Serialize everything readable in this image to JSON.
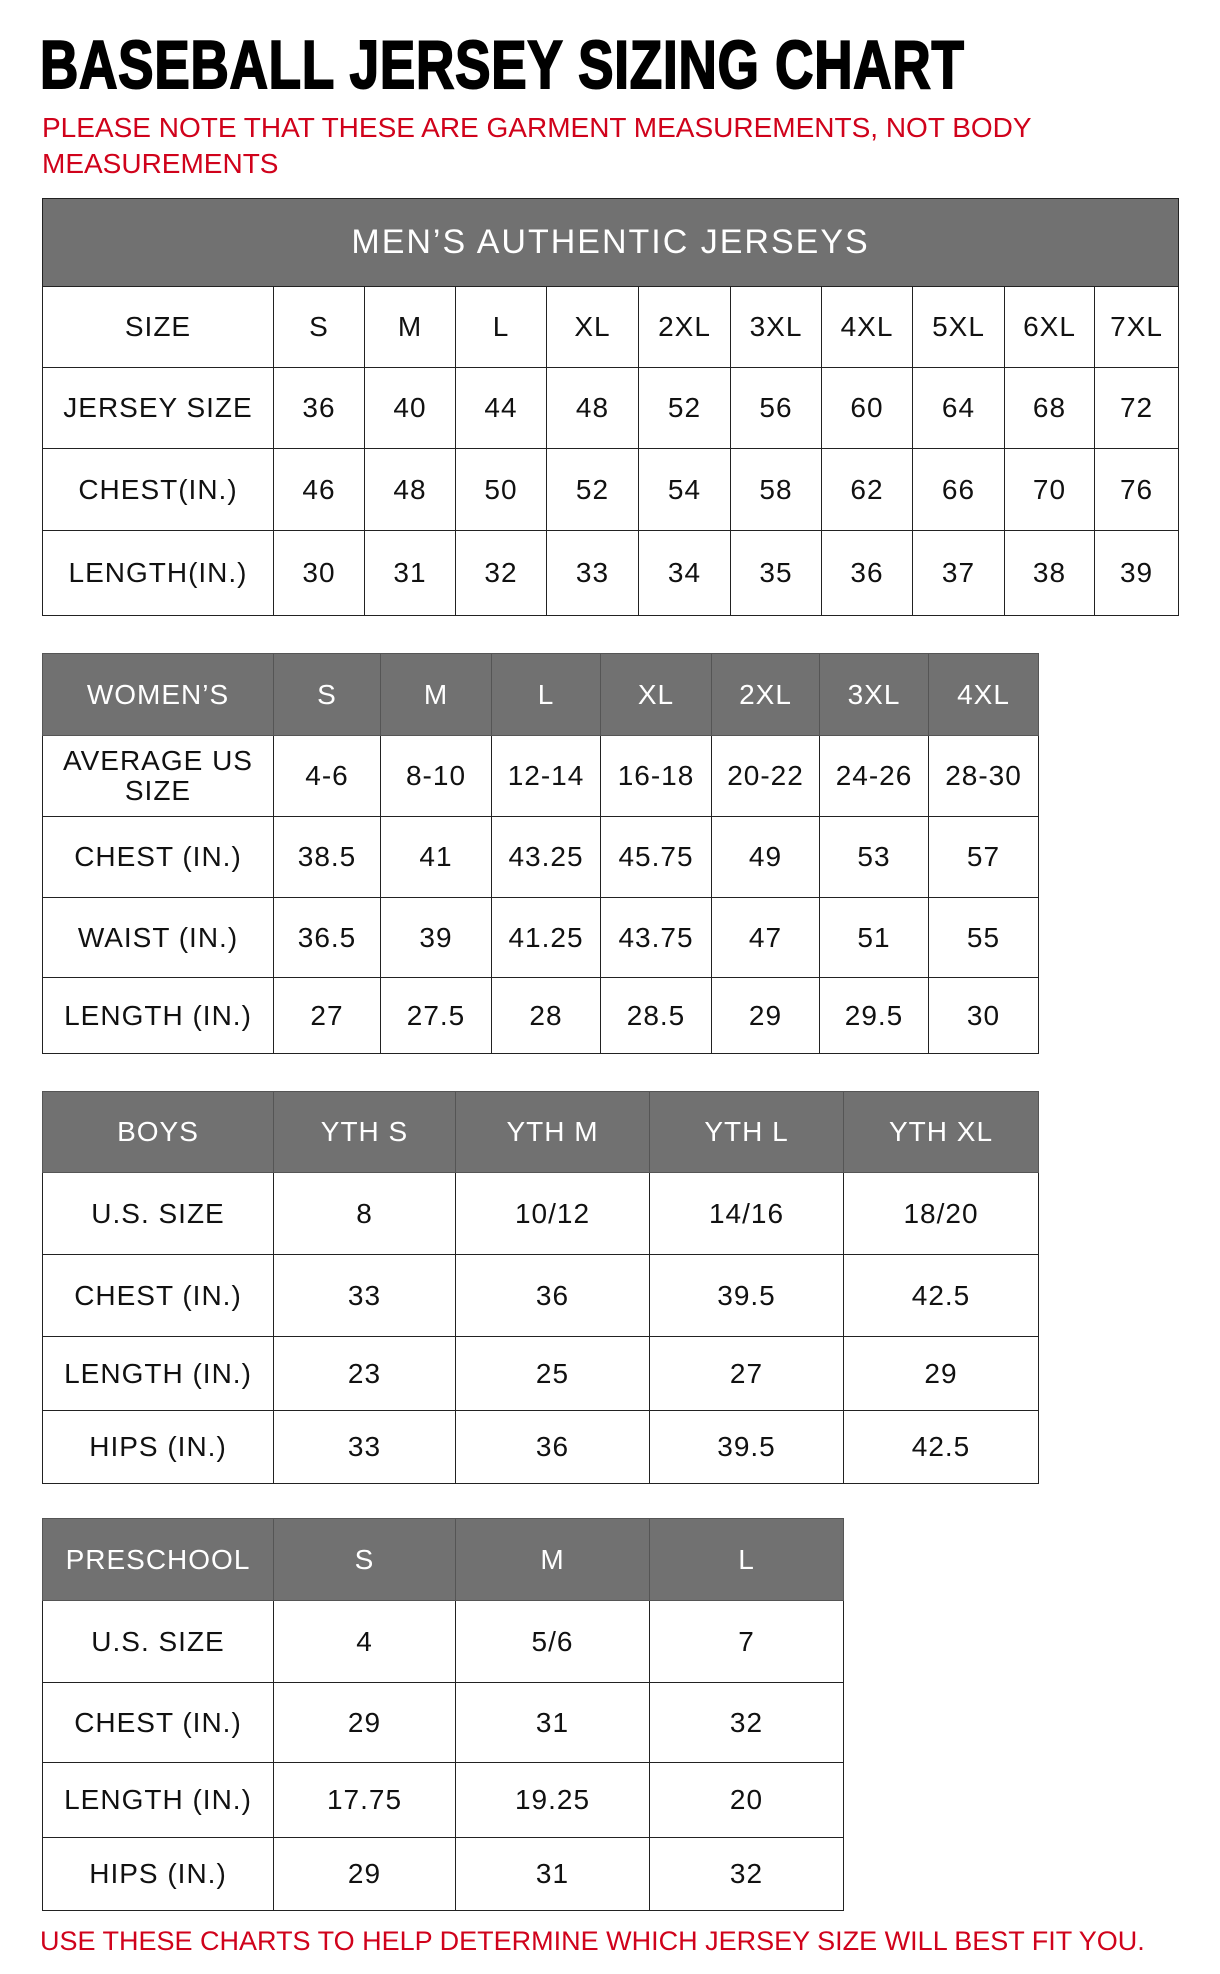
{
  "title": "BASEBALL JERSEY SIZING CHART",
  "note": "PLEASE NOTE THAT THESE ARE GARMENT MEASUREMENTS, NOT BODY MEASUREMENTS",
  "footer": "USE THESE CHARTS TO HELP DETERMINE WHICH JERSEY SIZE WILL BEST FIT YOU.",
  "colors": {
    "header_bg": "#717171",
    "note_red": "#d0021b"
  },
  "tables": [
    {
      "id": "mens",
      "banner": "MEN’S AUTHENTIC JERSEYS",
      "header_style": "white",
      "header": [
        "SIZE",
        "S",
        "M",
        "L",
        "XL",
        "2XL",
        "3XL",
        "4XL",
        "5XL",
        "6XL",
        "7XL"
      ],
      "rows": [
        [
          "JERSEY SIZE",
          "36",
          "40",
          "44",
          "48",
          "52",
          "56",
          "60",
          "64",
          "68",
          "72"
        ],
        [
          "CHEST(IN.)",
          "46",
          "48",
          "50",
          "52",
          "54",
          "58",
          "62",
          "66",
          "70",
          "76"
        ],
        [
          "LENGTH(IN.)",
          "30",
          "31",
          "32",
          "33",
          "34",
          "35",
          "36",
          "37",
          "38",
          "39"
        ]
      ]
    },
    {
      "id": "womens",
      "header_style": "gray",
      "header": [
        "WOMEN’S",
        "S",
        "M",
        "L",
        "XL",
        "2XL",
        "3XL",
        "4XL"
      ],
      "rows": [
        [
          "AVERAGE US SIZE",
          "4-6",
          "8-10",
          "12-14",
          "16-18",
          "20-22",
          "24-26",
          "28-30"
        ],
        [
          "CHEST (IN.)",
          "38.5",
          "41",
          "43.25",
          "45.75",
          "49",
          "53",
          "57"
        ],
        [
          "WAIST (IN.)",
          "36.5",
          "39",
          "41.25",
          "43.75",
          "47",
          "51",
          "55"
        ],
        [
          "LENGTH (IN.)",
          "27",
          "27.5",
          "28",
          "28.5",
          "29",
          "29.5",
          "30"
        ]
      ]
    },
    {
      "id": "boys",
      "header_style": "gray",
      "header": [
        "BOYS",
        "YTH S",
        "YTH M",
        "YTH L",
        "YTH XL"
      ],
      "rows": [
        [
          "U.S. SIZE",
          "8",
          "10/12",
          "14/16",
          "18/20"
        ],
        [
          "CHEST (IN.)",
          "33",
          "36",
          "39.5",
          "42.5"
        ],
        [
          "LENGTH (IN.)",
          "23",
          "25",
          "27",
          "29"
        ],
        [
          "HIPS (IN.)",
          "33",
          "36",
          "39.5",
          "42.5"
        ]
      ]
    },
    {
      "id": "preschool",
      "header_style": "gray",
      "header": [
        "PRESCHOOL",
        "S",
        "M",
        "L"
      ],
      "rows": [
        [
          "U.S. SIZE",
          "4",
          "5/6",
          "7"
        ],
        [
          "CHEST (IN.)",
          "29",
          "31",
          "32"
        ],
        [
          "LENGTH (IN.)",
          "17.75",
          "19.25",
          "20"
        ],
        [
          "HIPS (IN.)",
          "29",
          "31",
          "32"
        ]
      ]
    }
  ]
}
